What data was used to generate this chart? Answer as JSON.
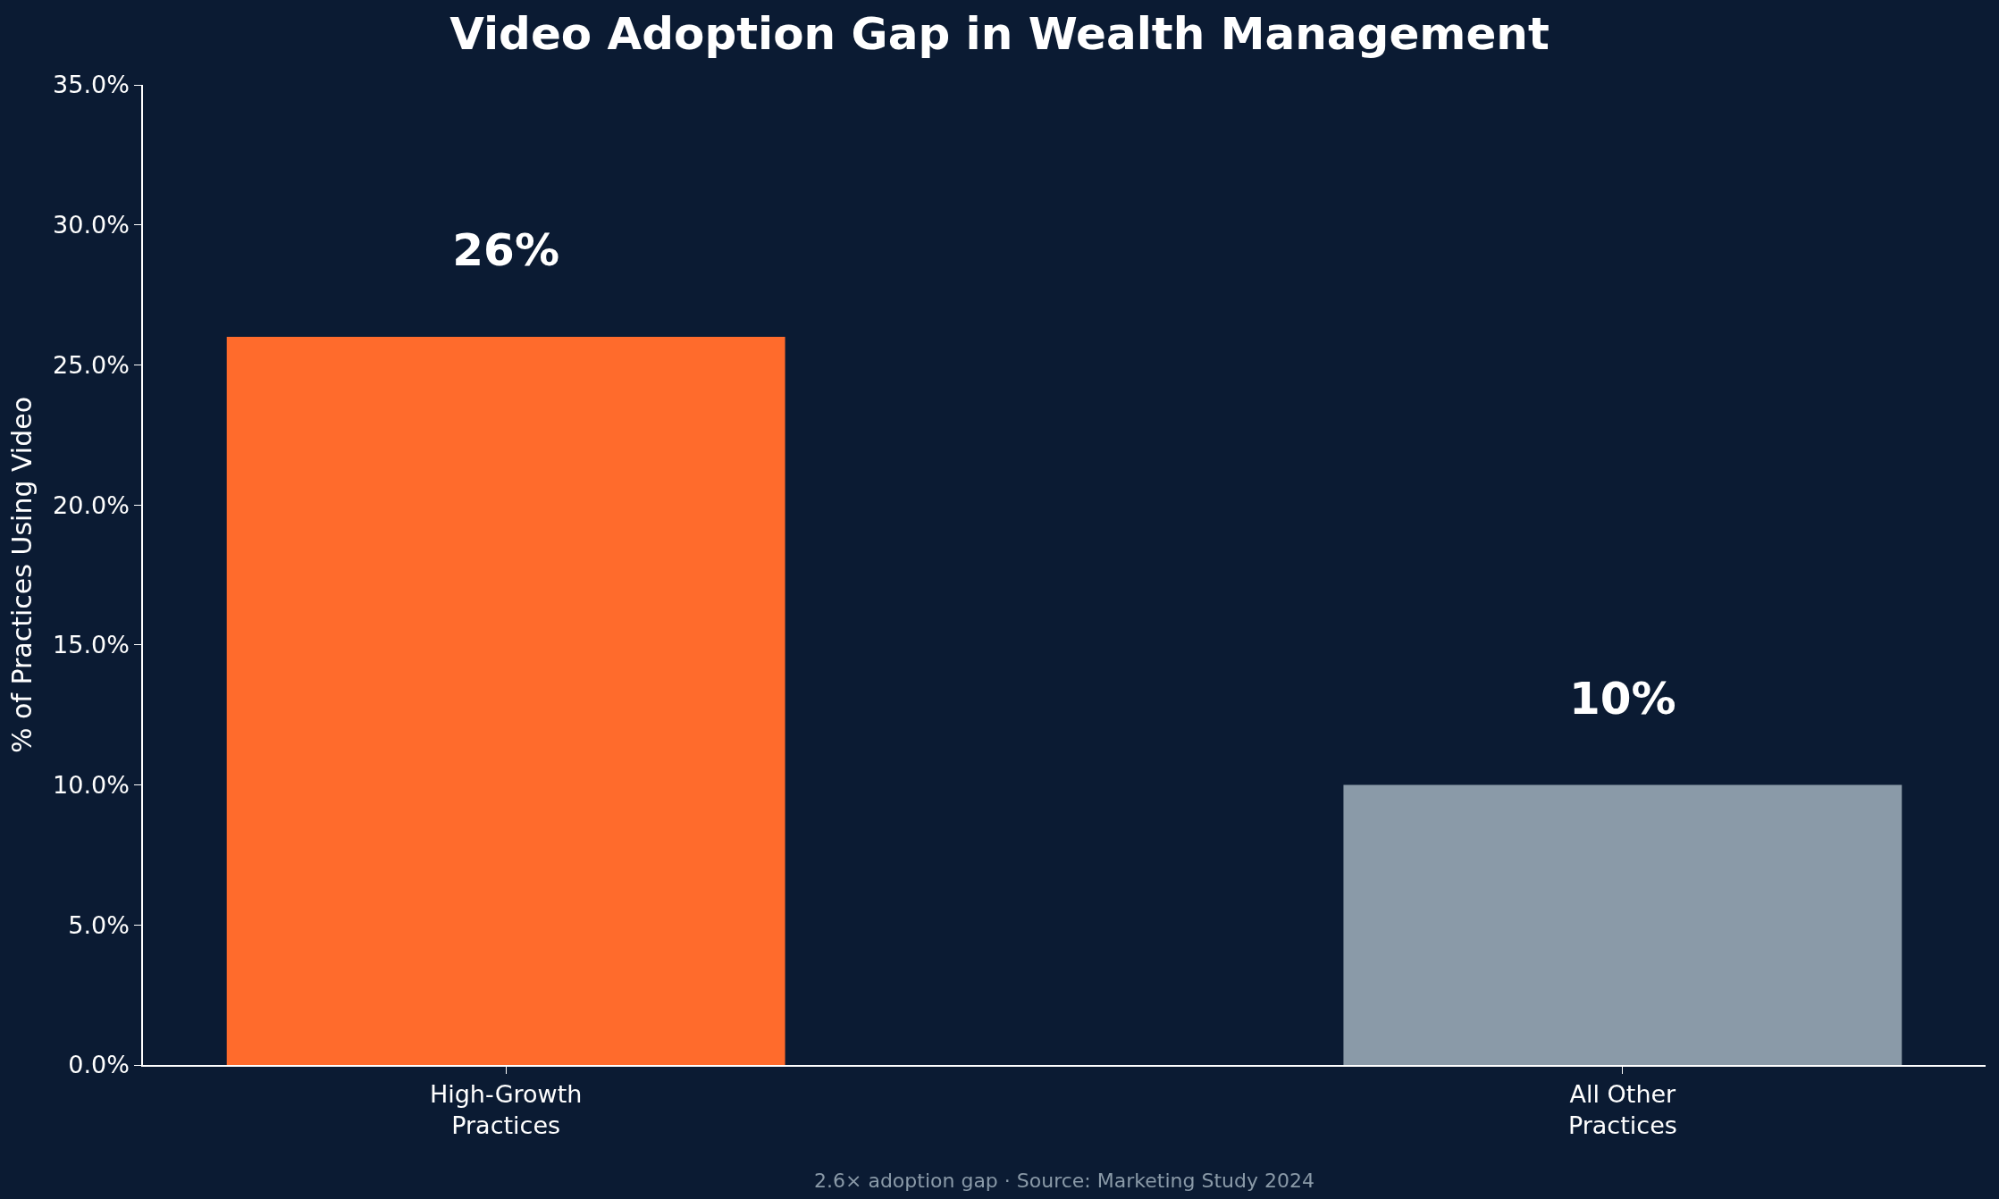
{
  "chart_data": {
    "type": "bar",
    "title": "Video Adoption Gap in Wealth Management",
    "ylabel": "% of Practices Using Video",
    "categories": [
      "High-Growth\nPractices",
      "All Other\nPractices"
    ],
    "values": [
      26,
      10
    ],
    "colors": [
      "#ff6b2c",
      "#8a9aa8"
    ],
    "value_labels": [
      "26%",
      "10%"
    ],
    "ylim": [
      0,
      35
    ],
    "yticks": [
      {
        "value": 0,
        "label": "0.0%"
      },
      {
        "value": 5,
        "label": "5.0%"
      },
      {
        "value": 10,
        "label": "10.0%"
      },
      {
        "value": 15,
        "label": "15.0%"
      },
      {
        "value": 20,
        "label": "20.0%"
      },
      {
        "value": 25,
        "label": "25.0%"
      },
      {
        "value": 30,
        "label": "30.0%"
      },
      {
        "value": 35,
        "label": "35.0%"
      }
    ],
    "grid": false,
    "legend": false,
    "annotations": [
      "2.6× adoption gap · Source: Marketing Study 2024"
    ]
  }
}
